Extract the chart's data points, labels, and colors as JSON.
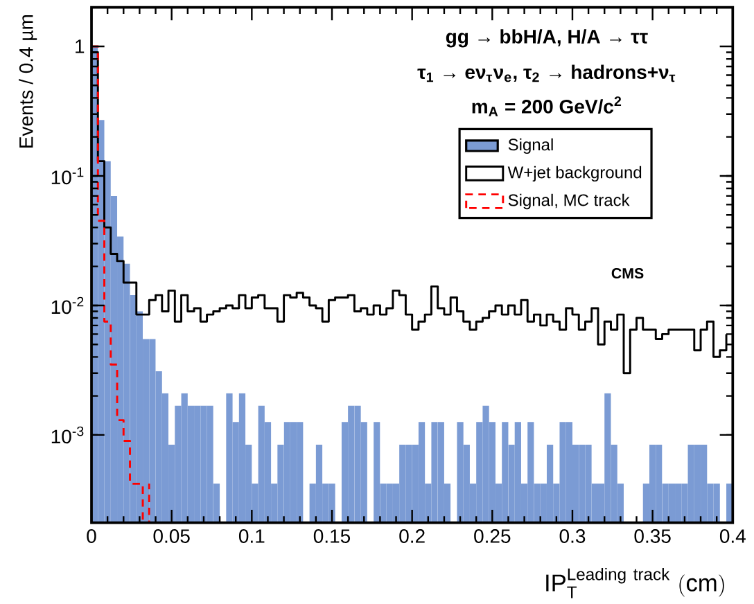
{
  "chart_data": {
    "type": "histogram",
    "title": "gg → bbH/A, H/A → ττ",
    "subtitle": "τ$_{1}$ → eν$_{τ}$ν$_{e}$,  τ$_{2}$ → hadrons+ν$_{τ}$",
    "annotations": [
      "m$_{A}$ = 200 GeV/c$^{2}$",
      "CMS"
    ],
    "xlabel": "\\mathrm{IP}_{\\mathrm{T}}^{\\mathrm{Leading\\ track}}\\ \\mathrm{(cm)}",
    "ylabel": "Events / 0.4 µm",
    "bins": [
      0,
      0.004,
      0.008,
      0.012,
      0.016,
      0.02,
      0.024,
      0.028,
      0.032,
      0.036,
      0.04,
      0.044,
      0.048,
      0.052,
      0.056,
      0.06,
      0.064,
      0.068,
      0.072,
      0.076,
      0.08,
      0.084,
      0.088,
      0.092,
      0.096,
      0.1,
      0.104,
      0.108,
      0.112,
      0.116,
      0.12,
      0.124,
      0.128,
      0.132,
      0.136,
      0.14,
      0.144,
      0.148,
      0.152,
      0.156,
      0.16,
      0.164,
      0.168,
      0.172,
      0.176,
      0.18,
      0.184,
      0.188,
      0.192,
      0.196,
      0.2,
      0.204,
      0.208,
      0.212,
      0.216,
      0.22,
      0.224,
      0.228,
      0.232,
      0.236,
      0.24,
      0.244,
      0.248,
      0.252,
      0.256,
      0.26,
      0.264,
      0.268,
      0.272,
      0.276,
      0.28,
      0.284,
      0.288,
      0.292,
      0.296,
      0.3,
      0.304,
      0.308,
      0.312,
      0.316,
      0.32,
      0.324,
      0.328,
      0.332,
      0.336,
      0.34,
      0.344,
      0.348,
      0.352,
      0.356,
      0.36,
      0.364,
      0.368,
      0.372,
      0.376,
      0.38,
      0.384,
      0.388,
      0.392,
      0.396,
      0.4
    ],
    "series": [
      {
        "name": "Signal",
        "color": "#7b9bd4",
        "values": [
          1.0,
          0.27,
          0.13,
          0.07,
          0.034,
          0.021,
          0.012,
          0.009,
          0.0055,
          0.0055,
          0.0031,
          0.0021,
          0.00084,
          0.00168,
          0.0021,
          0.00168,
          0.00168,
          0.00168,
          0.00168,
          0.00042,
          null,
          0.0021,
          0.00126,
          0.0021,
          0.00084,
          0.00042,
          0.00168,
          0.00126,
          0.00042,
          0.00084,
          0.00126,
          0.00126,
          0.00126,
          null,
          0.00042,
          0.00084,
          0.00042,
          0.00042,
          null,
          0.00126,
          0.00168,
          0.00168,
          0.00126,
          null,
          0.00126,
          0.00042,
          0.00042,
          0.00042,
          0.00084,
          0.00084,
          0.00084,
          0.00126,
          0.00042,
          0.00126,
          0.00126,
          0.00042,
          null,
          0.00126,
          0.00084,
          0.00042,
          0.00126,
          0.00168,
          0.00126,
          0.00042,
          0.00126,
          0.00084,
          0.00126,
          0.00042,
          0.00126,
          0.00042,
          0.00042,
          0.00084,
          0.00042,
          0.00126,
          0.00126,
          0.00084,
          0.00084,
          0.00084,
          0.00042,
          0.00042,
          0.0021,
          0.00084,
          0.00042,
          null,
          null,
          null,
          0.00042,
          0.00084,
          0.00084,
          0.00042,
          0.00042,
          0.00042,
          0.00042,
          0.00084,
          0.00084,
          0.00084,
          0.00042,
          0.00042,
          null,
          0.00042
        ]
      },
      {
        "name": "W+jet background",
        "type": "step",
        "color": "#000000",
        "x": [
          0,
          0.004,
          0.008,
          0.012,
          0.016,
          0.02,
          0.024,
          0.028,
          0.032,
          0.036,
          0.04,
          0.044,
          0.048,
          0.052,
          0.056,
          0.06,
          0.064,
          0.068,
          0.072,
          0.076,
          0.08,
          0.084,
          0.088,
          0.092,
          0.096,
          0.1,
          0.104,
          0.108,
          0.112,
          0.116,
          0.12,
          0.124,
          0.128,
          0.132,
          0.136,
          0.14,
          0.144,
          0.148,
          0.152,
          0.156,
          0.16,
          0.164,
          0.168,
          0.172,
          0.176,
          0.18,
          0.184,
          0.188,
          0.192,
          0.196,
          0.2,
          0.204,
          0.208,
          0.212,
          0.216,
          0.22,
          0.224,
          0.228,
          0.232,
          0.236,
          0.24,
          0.244,
          0.248,
          0.252,
          0.256,
          0.26,
          0.264,
          0.268,
          0.272,
          0.276,
          0.28,
          0.284,
          0.288,
          0.292,
          0.296,
          0.3,
          0.304,
          0.308,
          0.312,
          0.316,
          0.32,
          0.324,
          0.328,
          0.332,
          0.336,
          0.34,
          0.344,
          0.348,
          0.352,
          0.356,
          0.36,
          0.364,
          0.368,
          0.372,
          0.376,
          0.38,
          0.384,
          0.388,
          0.392,
          0.396
        ],
        "values": [
          0.9,
          0.13,
          0.04,
          0.025,
          0.022,
          0.015,
          0.015,
          0.0085,
          0.0085,
          0.011,
          0.012,
          0.009,
          0.013,
          0.0075,
          0.012,
          0.009,
          0.0095,
          0.0075,
          0.0085,
          0.009,
          0.0095,
          0.01,
          0.0095,
          0.012,
          0.0095,
          0.0115,
          0.012,
          0.0095,
          0.0095,
          0.0075,
          0.012,
          0.0115,
          0.0125,
          0.0115,
          0.01,
          0.0095,
          0.0075,
          0.011,
          0.0115,
          0.0115,
          0.012,
          0.009,
          0.0095,
          0.0085,
          0.01,
          0.0085,
          0.0095,
          0.013,
          0.012,
          0.0085,
          0.0065,
          0.0075,
          0.0085,
          0.014,
          0.0095,
          0.0085,
          0.0115,
          0.009,
          0.0075,
          0.0065,
          0.0075,
          0.008,
          0.009,
          0.01,
          0.0085,
          0.01,
          0.0085,
          0.011,
          0.0075,
          0.0085,
          0.007,
          0.0085,
          0.0075,
          0.0065,
          0.0095,
          0.0085,
          0.0065,
          0.0075,
          0.0095,
          0.005,
          0.0075,
          0.0065,
          0.0085,
          0.003,
          0.0065,
          0.008,
          0.0065,
          0.0065,
          0.0055,
          0.006,
          0.0065,
          0.0065,
          0.0065,
          0.0065,
          0.0045,
          0.0065,
          0.0075,
          0.004,
          0.0045,
          0.006
        ]
      },
      {
        "name": "Signal, MC track",
        "type": "step",
        "line_style": "dashed",
        "color": "#ff0000",
        "x": [
          0,
          0.004,
          0.008,
          0.012,
          0.016,
          0.02,
          0.024,
          0.028,
          0.032,
          0.036
        ],
        "values": [
          1.0,
          0.045,
          0.0075,
          0.0035,
          0.0013,
          0.0009,
          0.00042,
          0.00042,
          null,
          0.00042
        ]
      }
    ],
    "xlim": [
      0,
      0.4
    ],
    "ylim": [
      0.00021,
      2
    ],
    "xticks": [
      0,
      0.05,
      0.1,
      0.15,
      0.2,
      0.25,
      0.3,
      0.35,
      0.4
    ],
    "yticks": [
      {
        "value": 0.001,
        "label": "10$^{-3}$"
      },
      {
        "value": 0.01,
        "label": "10$^{-2}$"
      },
      {
        "value": 0.1,
        "label": "10$^{-1}$"
      },
      1
    ],
    "log": true,
    "legend": "top right"
  }
}
